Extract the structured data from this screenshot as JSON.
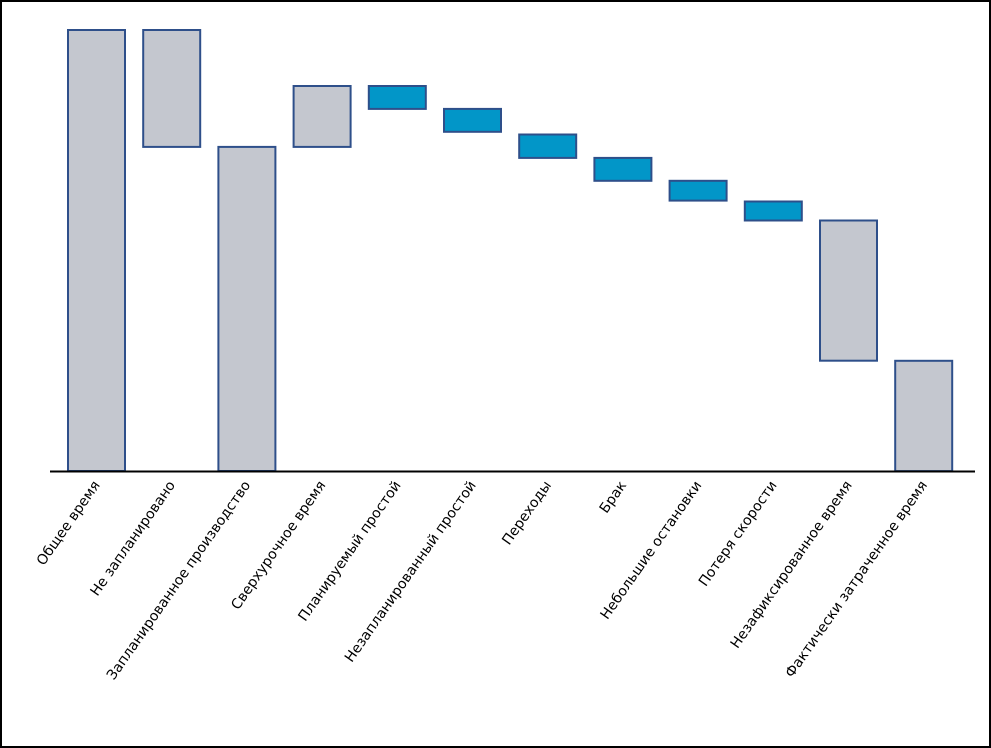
{
  "chart_data": {
    "type": "bar",
    "subtype": "waterfall",
    "title": "",
    "xlabel": "",
    "ylabel": "",
    "ylim": [
      0,
      100
    ],
    "grid": false,
    "legend": "none",
    "categories": [
      "Общее время",
      "Не запланировано",
      "Запланированное производство",
      "Сверхурочное время",
      "Планируемый простой",
      "Незапланированный простой",
      "Переходы",
      "Брак",
      "Небольшие остановки",
      "Потеря скорости",
      "Незафиксированное время",
      "Фактически затраченное время"
    ],
    "bars": [
      {
        "start": 0,
        "end": 100,
        "kind": "total"
      },
      {
        "start": 73.5,
        "end": 100,
        "kind": "total"
      },
      {
        "start": 0,
        "end": 73.5,
        "kind": "total"
      },
      {
        "start": 73.5,
        "end": 87.3,
        "kind": "total"
      },
      {
        "start": 82.1,
        "end": 87.3,
        "kind": "loss"
      },
      {
        "start": 76.9,
        "end": 82.1,
        "kind": "loss"
      },
      {
        "start": 71.0,
        "end": 76.3,
        "kind": "loss"
      },
      {
        "start": 65.8,
        "end": 71.0,
        "kind": "loss"
      },
      {
        "start": 61.3,
        "end": 65.8,
        "kind": "loss"
      },
      {
        "start": 56.8,
        "end": 61.1,
        "kind": "loss"
      },
      {
        "start": 25.0,
        "end": 56.8,
        "kind": "total"
      },
      {
        "start": 0,
        "end": 25.0,
        "kind": "total"
      }
    ],
    "colors": {
      "total_fill": "#c4c7cf",
      "loss_fill": "#0296c8",
      "bar_stroke": "#2e4f8a",
      "axis": "#000000"
    }
  }
}
